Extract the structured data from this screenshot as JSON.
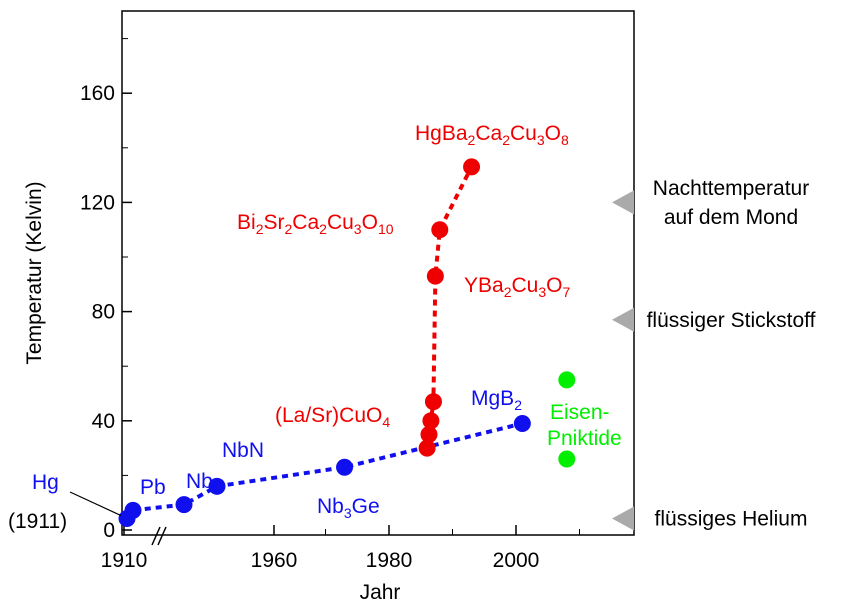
{
  "chart_data": {
    "type": "scatter",
    "xlabel": "Jahr",
    "ylabel": "Temperatur (Kelvin)",
    "xlim": [
      1905,
      2020
    ],
    "ylim": [
      0,
      190
    ],
    "x_axis_break": "1910–1960",
    "xticks": [
      {
        "value": 1910,
        "label": "1910"
      },
      {
        "value": 1960,
        "label": "1960"
      },
      {
        "value": 1980,
        "label": "1980"
      },
      {
        "value": 2000,
        "label": "2000"
      }
    ],
    "yticks": [
      0,
      40,
      80,
      120,
      160
    ],
    "colors": {
      "low_tc": "#1010ee",
      "cuprate": "#ee0000",
      "pnictide": "#00ee00",
      "marker": "#aaaaaa"
    },
    "series": [
      {
        "color": "#1010ee",
        "dashed_line": true,
        "points": [
          {
            "x": 1911,
            "y": 4.2
          },
          {
            "x": 1913,
            "y": 7.2
          },
          {
            "x": 1930,
            "y": 9.3
          },
          {
            "x": 1941,
            "y": 16
          },
          {
            "x": 1973,
            "y": 23
          },
          {
            "x": 2001,
            "y": 39
          }
        ]
      },
      {
        "color": "#ee0000",
        "dashed_line": true,
        "points": [
          {
            "x": 1986,
            "y": 30
          },
          {
            "x": 1986.3,
            "y": 35
          },
          {
            "x": 1986.6,
            "y": 40
          },
          {
            "x": 1987,
            "y": 47
          },
          {
            "x": 1987.3,
            "y": 93
          },
          {
            "x": 1988,
            "y": 110
          },
          {
            "x": 1993,
            "y": 133
          }
        ]
      },
      {
        "color": "#00ee00",
        "dashed_line": false,
        "points": [
          {
            "x": 2008,
            "y": 26
          },
          {
            "x": 2008,
            "y": 55
          }
        ]
      }
    ],
    "labels": [
      {
        "id": "hg",
        "parts": [
          {
            "t": "Hg"
          }
        ],
        "color": "#1010ee"
      },
      {
        "id": "hg-year",
        "parts": [
          {
            "t": "(1911)"
          }
        ],
        "color": "#000000"
      },
      {
        "id": "pb",
        "parts": [
          {
            "t": "Pb"
          }
        ],
        "color": "#1010ee"
      },
      {
        "id": "nb",
        "parts": [
          {
            "t": "Nb"
          }
        ],
        "color": "#1010ee"
      },
      {
        "id": "nbn",
        "parts": [
          {
            "t": "NbN"
          }
        ],
        "color": "#1010ee"
      },
      {
        "id": "nb3ge",
        "parts": [
          {
            "t": "Nb"
          },
          {
            "t": "3",
            "sub": true
          },
          {
            "t": "Ge"
          }
        ],
        "color": "#1010ee"
      },
      {
        "id": "mgb2",
        "parts": [
          {
            "t": "MgB"
          },
          {
            "t": "2",
            "sub": true
          }
        ],
        "color": "#1010ee"
      },
      {
        "id": "lasrcuo",
        "parts": [
          {
            "t": "(La/Sr)CuO"
          },
          {
            "t": "4",
            "sub": true
          }
        ],
        "color": "#ee0000"
      },
      {
        "id": "ybco",
        "parts": [
          {
            "t": "YBa"
          },
          {
            "t": "2",
            "sub": true
          },
          {
            "t": "Cu"
          },
          {
            "t": "3",
            "sub": true
          },
          {
            "t": "O"
          },
          {
            "t": "7",
            "sub": true
          }
        ],
        "color": "#ee0000"
      },
      {
        "id": "bscco",
        "parts": [
          {
            "t": "Bi"
          },
          {
            "t": "2",
            "sub": true
          },
          {
            "t": "Sr"
          },
          {
            "t": "2",
            "sub": true
          },
          {
            "t": "Ca"
          },
          {
            "t": "2",
            "sub": true
          },
          {
            "t": "Cu"
          },
          {
            "t": "3",
            "sub": true
          },
          {
            "t": "O"
          },
          {
            "t": "10",
            "sub": true
          }
        ],
        "color": "#ee0000"
      },
      {
        "id": "hbcco",
        "parts": [
          {
            "t": "HgBa"
          },
          {
            "t": "2",
            "sub": true
          },
          {
            "t": "Ca"
          },
          {
            "t": "2",
            "sub": true
          },
          {
            "t": "Cu"
          },
          {
            "t": "3",
            "sub": true
          },
          {
            "t": "O"
          },
          {
            "t": "8",
            "sub": true
          }
        ],
        "color": "#ee0000"
      },
      {
        "id": "eisen",
        "parts": [
          {
            "t": "Eisen-"
          }
        ],
        "color": "#00ee00"
      },
      {
        "id": "pniktide",
        "parts": [
          {
            "t": "Pniktide"
          }
        ],
        "color": "#00ee00"
      }
    ],
    "reference_marks": [
      {
        "value": 4.2,
        "lines": [
          "flüssiges Helium"
        ]
      },
      {
        "value": 77,
        "lines": [
          "flüssiger Stickstoff"
        ]
      },
      {
        "value": 120,
        "lines": [
          "Nachttemperatur",
          "auf dem Mond"
        ]
      }
    ]
  }
}
